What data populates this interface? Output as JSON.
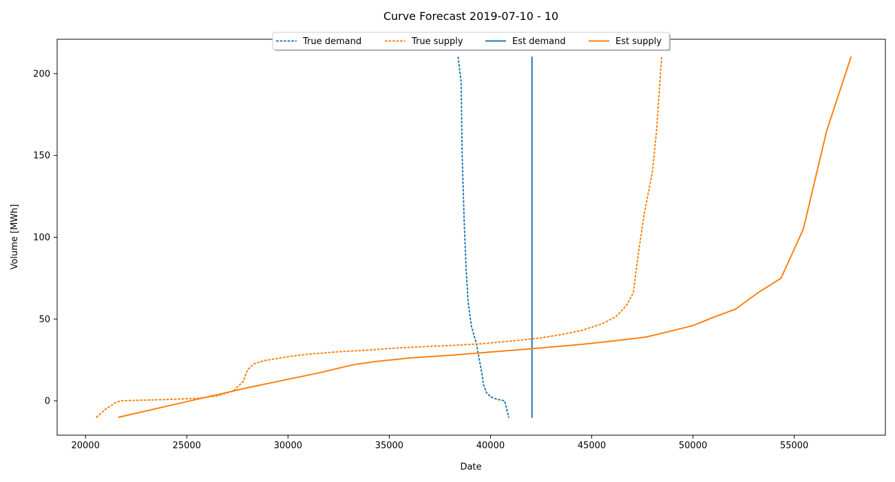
{
  "chart_data": {
    "type": "line",
    "title": "Curve Forecast 2019-07-10 - 10",
    "xlabel": "Date",
    "ylabel": "Volume [MWh]",
    "xlim": [
      18600,
      59500
    ],
    "ylim": [
      -21,
      221
    ],
    "xticks": [
      20000,
      25000,
      30000,
      35000,
      40000,
      45000,
      50000,
      55000
    ],
    "yticks": [
      0,
      50,
      100,
      150,
      200
    ],
    "legend_position": "top-center",
    "series": [
      {
        "name": "True demand",
        "color": "#1f77b4",
        "style": "dotted",
        "points": [
          [
            38400,
            210
          ],
          [
            38550,
            195
          ],
          [
            38600,
            150
          ],
          [
            38700,
            110
          ],
          [
            38800,
            80
          ],
          [
            38900,
            60
          ],
          [
            39050,
            46
          ],
          [
            39300,
            35
          ],
          [
            39450,
            25
          ],
          [
            39600,
            15
          ],
          [
            39650,
            10
          ],
          [
            39800,
            5
          ],
          [
            40000,
            2.5
          ],
          [
            40300,
            1
          ],
          [
            40700,
            0
          ],
          [
            40900,
            -10
          ]
        ]
      },
      {
        "name": "True supply",
        "color": "#ff7f0e",
        "style": "dotted",
        "points": [
          [
            20550,
            -10
          ],
          [
            21000,
            -5
          ],
          [
            21500,
            -1
          ],
          [
            21750,
            0
          ],
          [
            22500,
            0.3
          ],
          [
            24000,
            0.8
          ],
          [
            25500,
            1.5
          ],
          [
            26500,
            3
          ],
          [
            27300,
            6
          ],
          [
            27800,
            12
          ],
          [
            28000,
            19
          ],
          [
            28300,
            22.5
          ],
          [
            28800,
            24.5
          ],
          [
            30000,
            27
          ],
          [
            31000,
            28.5
          ],
          [
            32500,
            30
          ],
          [
            34000,
            31
          ],
          [
            35000,
            32
          ],
          [
            36500,
            33
          ],
          [
            38000,
            33.8
          ],
          [
            39500,
            34.8
          ],
          [
            41000,
            36.5
          ],
          [
            42500,
            38.5
          ],
          [
            43500,
            40.5
          ],
          [
            44500,
            43
          ],
          [
            45500,
            47
          ],
          [
            46200,
            51.5
          ],
          [
            46700,
            58
          ],
          [
            47050,
            66
          ],
          [
            47300,
            90
          ],
          [
            47600,
            115
          ],
          [
            48000,
            140
          ],
          [
            48200,
            165
          ],
          [
            48450,
            210
          ]
        ]
      },
      {
        "name": "Est demand",
        "color": "#1f77b4",
        "style": "solid",
        "points": [
          [
            42050,
            -10
          ],
          [
            42050,
            210
          ]
        ]
      },
      {
        "name": "Est supply",
        "color": "#ff7f0e",
        "style": "solid",
        "points": [
          [
            21650,
            -10
          ],
          [
            25000,
            -0.5
          ],
          [
            28000,
            8
          ],
          [
            31500,
            17
          ],
          [
            33200,
            22
          ],
          [
            34300,
            24
          ],
          [
            36000,
            26.2
          ],
          [
            38000,
            27.8
          ],
          [
            40000,
            29.8
          ],
          [
            42000,
            31.8
          ],
          [
            44500,
            34.5
          ],
          [
            46000,
            36.5
          ],
          [
            47700,
            39
          ],
          [
            48700,
            42
          ],
          [
            50000,
            46
          ],
          [
            51000,
            51
          ],
          [
            52100,
            56
          ],
          [
            53200,
            66
          ],
          [
            54350,
            75
          ],
          [
            55450,
            105
          ],
          [
            56600,
            165
          ],
          [
            57800,
            210
          ]
        ]
      }
    ]
  }
}
